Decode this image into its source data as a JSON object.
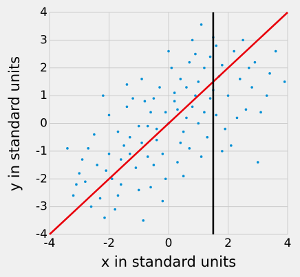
{
  "chart_data": {
    "type": "scatter",
    "xlabel": "x in standard units",
    "ylabel": "y in standard units",
    "xlim": [
      -4,
      4
    ],
    "ylim": [
      -4,
      4
    ],
    "xticks": [
      -4,
      -2,
      0,
      2,
      4
    ],
    "yticks": [
      -4,
      -3,
      -2,
      -1,
      0,
      1,
      2,
      3,
      4
    ],
    "grid": true,
    "color": "#008fd5",
    "x": [
      0,
      0.3,
      -0.4,
      0.8,
      -0.9,
      1.2,
      -1.3,
      0.5,
      -0.6,
      1.5,
      -1.6,
      0.2,
      -0.2,
      1.0,
      -1.1,
      2.0,
      -2.0,
      0.7,
      -0.8,
      1.8,
      -1.9,
      2.4,
      -2.4,
      0.1,
      -0.1,
      1.3,
      -1.4,
      2.6,
      -2.5,
      0.9,
      -1.0,
      3.0,
      -3.4,
      3.9,
      1.1,
      -0.85,
      -2.15,
      1.6,
      -1.7,
      2.2,
      -2.3,
      0.4,
      -0.5,
      1.4,
      -1.5,
      0.6,
      -0.7,
      2.9,
      -2.8,
      3.3,
      -3.0,
      1.9,
      -2.0,
      0.3,
      -0.3,
      1.7,
      -1.2,
      1.1,
      0.0,
      -0.2,
      2.5,
      -2.6,
      3.6,
      -3.2,
      0.8,
      -1.8,
      2.1,
      -2.2,
      1.4,
      -0.9,
      0.5,
      -1.6,
      2.8,
      -2.7,
      1.0,
      -1.0,
      0.2,
      -0.4,
      1.6,
      -1.7,
      0.9,
      -0.7,
      2.3,
      -0.1,
      0.6,
      -1.3,
      1.2,
      -2.1,
      3.1,
      -1.4,
      0.4,
      -0.5,
      1.8,
      2.7,
      -2.9,
      0.7,
      -0.6,
      3.4,
      1.5,
      -3.1
    ],
    "y": [
      0,
      0.5,
      -0.2,
      0.6,
      -0.7,
      0.4,
      -0.5,
      -0.3,
      0.4,
      1.2,
      -1.3,
      1.1,
      -1.1,
      1.5,
      -1.6,
      1.0,
      -1.1,
      -0.9,
      0.8,
      2.1,
      -2.0,
      1.6,
      -1.5,
      2.0,
      -2.0,
      -0.5,
      0.6,
      0.5,
      -0.4,
      2.5,
      -2.4,
      -1.4,
      -0.9,
      1.5,
      3.56,
      -3.5,
      -3.4,
      2.8,
      -2.6,
      2.6,
      -2.7,
      1.6,
      -1.5,
      0.9,
      -0.8,
      0.2,
      -0.1,
      2.2,
      -2.1,
      1.0,
      -1.8,
      -0.2,
      0.3,
      -1.4,
      1.3,
      1.7,
      0.9,
      -1.2,
      2.6,
      -2.8,
      3.0,
      -3.0,
      2.6,
      -2.6,
      3.0,
      -3.1,
      -0.8,
      1.0,
      2.4,
      1.6,
      -1.9,
      -2.2,
      1.3,
      -0.9,
      0.0,
      -0.1,
      0.8,
      -0.6,
      0.3,
      -0.3,
      1.0,
      -1.2,
      0.2,
      0.4,
      1.3,
      -1.1,
      2.0,
      -1.7,
      0.4,
      1.4,
      -0.7,
      0.9,
      -1.0,
      2.0,
      -1.3,
      2.2,
      -2.3,
      1.8,
      3.1,
      -2.2
    ],
    "lines": [
      {
        "color": "#e8000b",
        "x": [
          -4,
          4
        ],
        "y": [
          -4,
          4
        ]
      },
      {
        "color": "#000000",
        "x": [
          1.5,
          1.5
        ],
        "y": [
          -4,
          4
        ]
      }
    ]
  }
}
